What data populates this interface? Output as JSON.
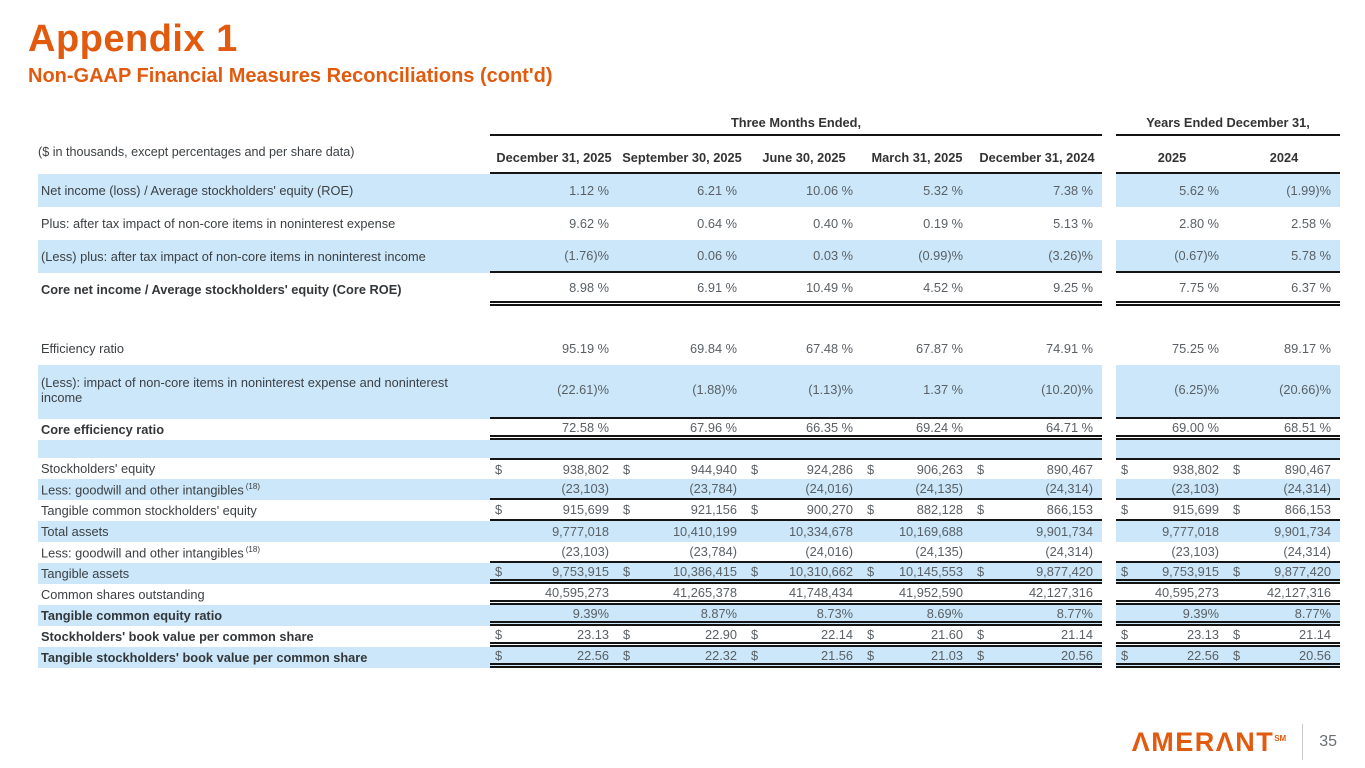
{
  "page": {
    "title": "Appendix 1",
    "subtitle": "Non-GAAP Financial Measures Reconciliations (cont'd)",
    "note": "($ in thousands, except percentages and per share data)",
    "page_number": "35",
    "logo_display": "ΛMERΛNT",
    "logo_mark": "SM"
  },
  "colors": {
    "accent_orange": "#E25A0E",
    "row_highlight": "#CBE7F9",
    "rule": "#141414",
    "value_text": "#5A6065"
  },
  "table": {
    "group_headers": [
      {
        "label": "Three Months Ended,",
        "span": 5
      },
      {
        "label": "Years Ended December 31,",
        "span": 2
      }
    ],
    "columns": [
      "December 31, 2025",
      "September 30, 2025",
      "June 30, 2025",
      "March 31, 2025",
      "December 31, 2024",
      "2025",
      "2024"
    ],
    "rows": [
      {
        "type": "data",
        "size": "tall",
        "highlight": true,
        "bold": false,
        "dollar": false,
        "rule": "none",
        "label": "Net income (loss) / Average stockholders' equity (ROE)",
        "values": [
          "1.12 %",
          "6.21 %",
          "10.06 %",
          "5.32 %",
          "7.38 %",
          "5.62 %",
          "(1.99)%"
        ]
      },
      {
        "type": "data",
        "size": "tall",
        "highlight": false,
        "bold": false,
        "dollar": false,
        "rule": "none",
        "label": "Plus: after tax impact of non-core items in noninterest expense",
        "values": [
          "9.62 %",
          "0.64 %",
          "0.40 %",
          "0.19 %",
          "5.13 %",
          "2.80 %",
          "2.58 %"
        ]
      },
      {
        "type": "data",
        "size": "tall",
        "highlight": true,
        "bold": false,
        "dollar": false,
        "rule": "single",
        "label": "(Less) plus: after tax impact of non-core items in noninterest income",
        "values": [
          "(1.76)%",
          "0.06 %",
          "0.03 %",
          "(0.99)%",
          "(3.26)%",
          "(0.67)%",
          "5.78 %"
        ]
      },
      {
        "type": "data",
        "size": "tall",
        "highlight": false,
        "bold": true,
        "dollar": false,
        "rule": "double",
        "label": "Core net income / Average stockholders' equity (Core ROE)",
        "values": [
          "8.98 %",
          "6.91 %",
          "10.49 %",
          "4.52 %",
          "9.25 %",
          "7.75 %",
          "6.37 %"
        ]
      },
      {
        "type": "spacer",
        "highlight": false,
        "height": 26
      },
      {
        "type": "data",
        "size": "tall",
        "highlight": false,
        "bold": false,
        "dollar": false,
        "rule": "none",
        "label": "Efficiency ratio",
        "values": [
          "95.19 %",
          "69.84 %",
          "67.48 %",
          "67.87 %",
          "74.91 %",
          "75.25 %",
          "89.17 %"
        ]
      },
      {
        "type": "data",
        "size": "xtall",
        "highlight": true,
        "bold": false,
        "dollar": false,
        "rule": "single",
        "label": "(Less): impact of non-core items in noninterest expense and noninterest income",
        "values": [
          "(22.61)%",
          "(1.88)%",
          "(1.13)%",
          "1.37 %",
          "(10.20)%",
          "(6.25)%",
          "(20.66)%"
        ]
      },
      {
        "type": "data",
        "size": "normal",
        "highlight": false,
        "bold": true,
        "dollar": false,
        "rule": "double",
        "label": "Core efficiency ratio",
        "values": [
          "72.58 %",
          "67.96 %",
          "66.35 %",
          "69.24 %",
          "64.71 %",
          "69.00 %",
          "68.51 %"
        ]
      },
      {
        "type": "spacer",
        "highlight": true,
        "height": 18
      },
      {
        "type": "data",
        "size": "normal",
        "highlight": false,
        "bold": false,
        "dollar": true,
        "rule": "none",
        "rule_top": "single",
        "label": "Stockholders' equity",
        "values": [
          "938,802",
          "944,940",
          "924,286",
          "906,263",
          "890,467",
          "938,802",
          "890,467"
        ]
      },
      {
        "type": "data",
        "size": "normal",
        "highlight": true,
        "bold": false,
        "dollar": false,
        "rule": "single",
        "sup": "(18)",
        "label": "Less: goodwill and other intangibles",
        "values": [
          "(23,103)",
          "(23,784)",
          "(24,016)",
          "(24,135)",
          "(24,314)",
          "(23,103)",
          "(24,314)"
        ]
      },
      {
        "type": "data",
        "size": "normal",
        "highlight": false,
        "bold": false,
        "dollar": true,
        "rule": "single",
        "label": "Tangible common stockholders' equity",
        "values": [
          "915,699",
          "921,156",
          "900,270",
          "882,128",
          "866,153",
          "915,699",
          "866,153"
        ]
      },
      {
        "type": "data",
        "size": "normal",
        "highlight": true,
        "bold": false,
        "dollar": false,
        "rule": "none",
        "label": "Total assets",
        "values": [
          "9,777,018",
          "10,410,199",
          "10,334,678",
          "10,169,688",
          "9,901,734",
          "9,777,018",
          "9,901,734"
        ]
      },
      {
        "type": "data",
        "size": "normal",
        "highlight": false,
        "bold": false,
        "dollar": false,
        "rule": "single",
        "sup": "(18)",
        "label": "Less: goodwill and other intangibles",
        "values": [
          "(23,103)",
          "(23,784)",
          "(24,016)",
          "(24,135)",
          "(24,314)",
          "(23,103)",
          "(24,314)"
        ]
      },
      {
        "type": "data",
        "size": "normal",
        "highlight": true,
        "bold": false,
        "dollar": true,
        "rule": "double",
        "label": "Tangible assets",
        "values": [
          "9,753,915",
          "10,386,415",
          "10,310,662",
          "10,145,553",
          "9,877,420",
          "9,753,915",
          "9,877,420"
        ]
      },
      {
        "type": "data",
        "size": "normal",
        "highlight": false,
        "bold": false,
        "dollar": false,
        "rule": "double",
        "label": "Common shares outstanding",
        "values": [
          "40,595,273",
          "41,265,378",
          "41,748,434",
          "41,952,590",
          "42,127,316",
          "40,595,273",
          "42,127,316"
        ]
      },
      {
        "type": "data",
        "size": "normal",
        "highlight": true,
        "bold": true,
        "dollar": false,
        "rule": "double",
        "label": "Tangible common equity ratio",
        "values": [
          "9.39%",
          "8.87%",
          "8.73%",
          "8.69%",
          "8.77%",
          "9.39%",
          "8.77%"
        ]
      },
      {
        "type": "data",
        "size": "normal",
        "highlight": false,
        "bold": true,
        "dollar": true,
        "rule": "double",
        "label": "Stockholders' book value per common share",
        "values": [
          "23.13",
          "22.90",
          "22.14",
          "21.60",
          "21.14",
          "23.13",
          "21.14"
        ]
      },
      {
        "type": "data",
        "size": "normal",
        "highlight": true,
        "bold": true,
        "dollar": true,
        "rule": "double",
        "label": "Tangible stockholders' book value per common share",
        "values": [
          "22.56",
          "22.32",
          "21.56",
          "21.03",
          "20.56",
          "22.56",
          "20.56"
        ]
      }
    ]
  }
}
